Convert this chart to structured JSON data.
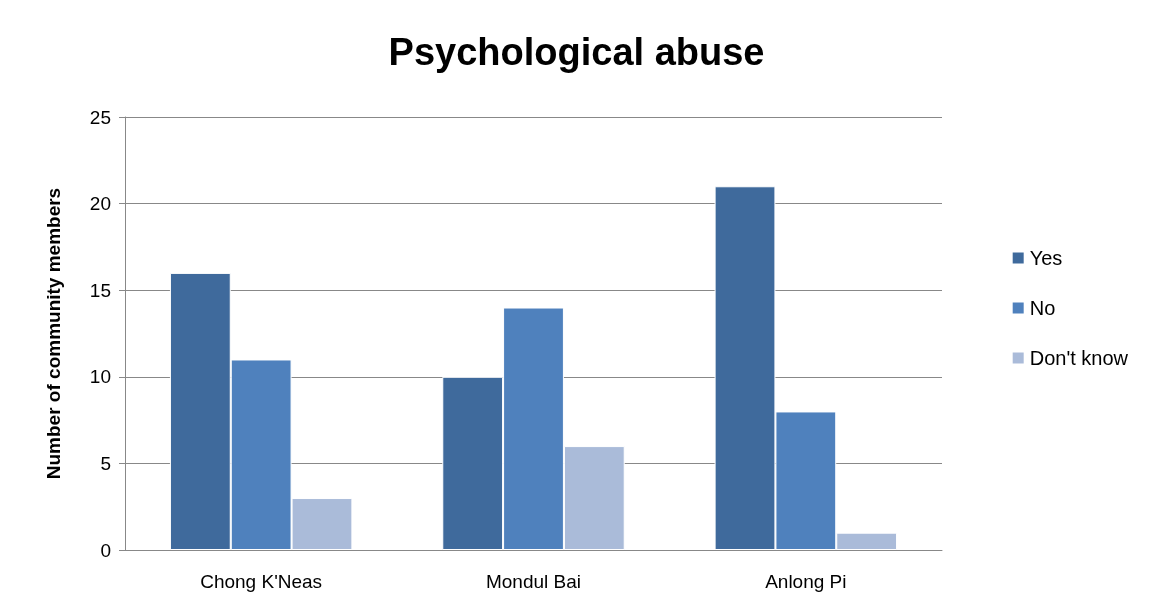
{
  "chart_data": {
    "type": "bar",
    "title": "Psychological abuse",
    "ylabel": "Number of community members",
    "categories": [
      "Chong K'Neas",
      "Mondul Bai",
      "Anlong Pi"
    ],
    "series": [
      {
        "name": "Yes",
        "color": "#3f6a9c",
        "values": [
          16,
          10,
          21
        ]
      },
      {
        "name": "No",
        "color": "#4f81bd",
        "values": [
          11,
          14,
          8
        ]
      },
      {
        "name": "Don't know",
        "color": "#aabbd9",
        "values": [
          3,
          6,
          1
        ]
      }
    ],
    "ylim": [
      0,
      25
    ],
    "yticks": [
      0,
      5,
      10,
      15,
      20,
      25
    ],
    "grid": "y",
    "legend": "right"
  }
}
